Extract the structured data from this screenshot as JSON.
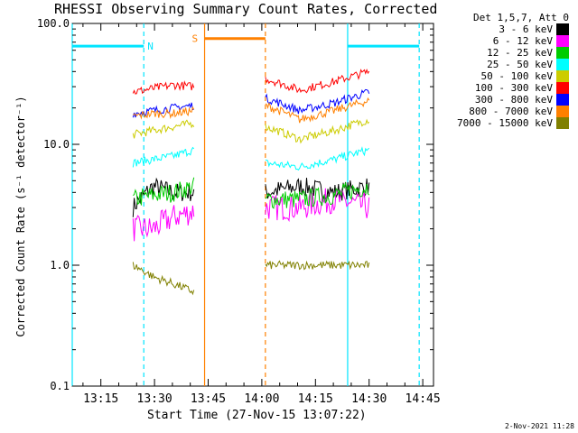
{
  "chart_data": {
    "type": "line",
    "title": "RHESSI Observing Summary Count Rates, Corrected",
    "xlabel": "Start Time (27-Nov-15 13:07:22)",
    "ylabel": "Corrected Count Rate (s⁻¹ detector⁻¹)",
    "yscale": "log",
    "ylim": [
      0.1,
      100
    ],
    "xlim": [
      "13:07",
      "14:48"
    ],
    "x_ticks": [
      "13:15",
      "13:30",
      "13:45",
      "14:00",
      "14:15",
      "14:30",
      "14:45"
    ],
    "y_ticks": [
      "0.1",
      "1.0",
      "10.0",
      "100.0"
    ],
    "legend_title": "Det 1,5,7, Att 0",
    "legend_position": "right",
    "annotations": [
      {
        "label": "N",
        "meaning": "night",
        "start": "13:07",
        "end": "13:27",
        "level": 65
      },
      {
        "label": "S",
        "meaning": "SAA",
        "start": "13:44",
        "end": "14:01",
        "level": 75
      },
      {
        "label": "",
        "meaning": "night",
        "start": "14:24",
        "end": "14:44",
        "level": 65
      }
    ],
    "intervals": [
      [
        "13:24",
        "13:41"
      ],
      [
        "14:01",
        "14:30"
      ]
    ],
    "series": [
      {
        "name": "3 - 6 keV",
        "color": "#000000",
        "seg1": [
          3.0,
          4.5,
          4.0,
          4.0
        ],
        "seg2": [
          4.0,
          4.5,
          4.0,
          4.5
        ]
      },
      {
        "name": "6 - 12 keV",
        "color": "#ff00ff",
        "seg1": [
          2.0,
          2.0,
          2.5,
          2.8
        ],
        "seg2": [
          3.0,
          3.0,
          3.5,
          3.0
        ]
      },
      {
        "name": "12 - 25 keV",
        "color": "#00cc00",
        "seg1": [
          3.5,
          3.8,
          4.0,
          4.5
        ],
        "seg2": [
          3.5,
          3.5,
          3.8,
          4.5
        ]
      },
      {
        "name": "25 - 50 keV",
        "color": "#00ffff",
        "seg1": [
          7.0,
          7.5,
          8.0,
          9.0
        ],
        "seg2": [
          7.0,
          6.5,
          7.5,
          9.0
        ]
      },
      {
        "name": "50 - 100 keV",
        "color": "#cccc00",
        "seg1": [
          12.0,
          13.0,
          14.0,
          15.0
        ],
        "seg2": [
          14.0,
          11.0,
          13.0,
          16.0
        ]
      },
      {
        "name": "100 - 300 keV",
        "color": "#ff0000",
        "seg1": [
          27.0,
          29.0,
          31.0,
          30.0
        ],
        "seg2": [
          35.0,
          28.0,
          33.0,
          40.0
        ]
      },
      {
        "name": "300 - 800 keV",
        "color": "#0000ff",
        "seg1": [
          18.0,
          19.0,
          20.0,
          21.0
        ],
        "seg2": [
          24.0,
          19.0,
          22.0,
          27.0
        ]
      },
      {
        "name": "800 - 7000 keV",
        "color": "#ff8000",
        "seg1": [
          17.0,
          18.0,
          18.0,
          19.0
        ],
        "seg2": [
          21.0,
          16.0,
          19.0,
          23.0
        ]
      },
      {
        "name": "7000 - 15000 keV",
        "color": "#808000",
        "seg1": [
          1.0,
          0.8,
          0.7,
          0.6
        ],
        "seg2": [
          1.0,
          1.0,
          1.0,
          1.0
        ]
      }
    ]
  },
  "stamp": "2-Nov-2021 11:28"
}
